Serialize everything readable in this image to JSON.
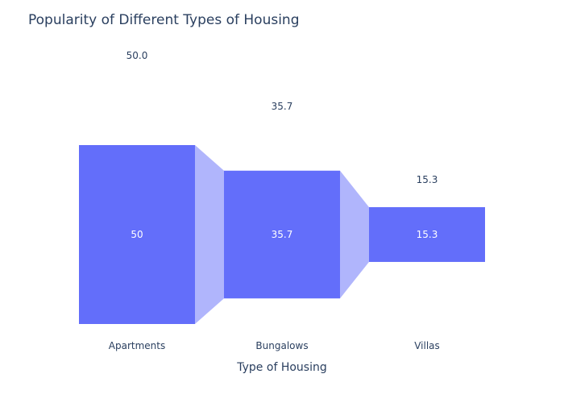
{
  "chart_data": {
    "type": "funnel",
    "title": "Popularity of Different Types of Housing",
    "xlabel": "Type of Housing",
    "categories": [
      "Apartments",
      "Bungalows",
      "Villas"
    ],
    "values": [
      50,
      35.7,
      15.3
    ],
    "outside_labels": [
      "50.0",
      "35.7",
      "15.3"
    ],
    "inside_labels": [
      "50",
      "35.7",
      "15.3"
    ],
    "ylim": [
      0,
      50
    ],
    "colors": {
      "bar": "#636efa",
      "connector": "#b0b5fc",
      "text": "#2a3f5f",
      "inside_text": "#ffffff"
    },
    "grid": false,
    "legend": "none"
  }
}
